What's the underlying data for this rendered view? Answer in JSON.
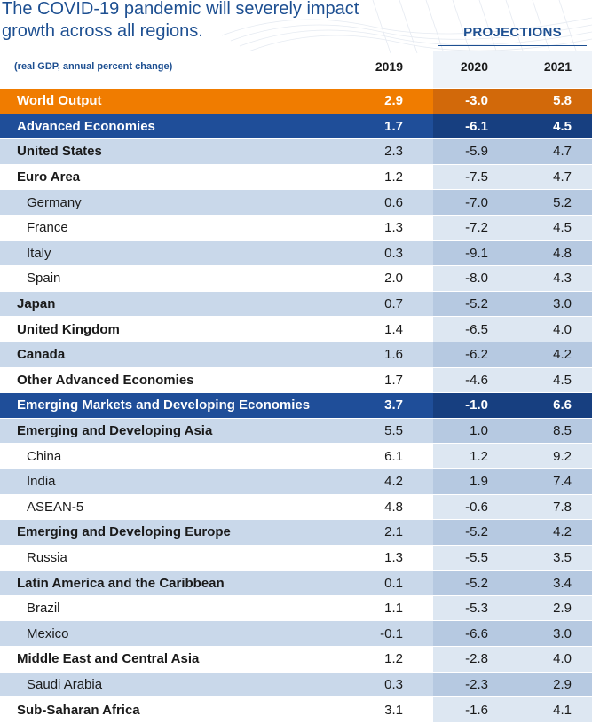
{
  "title_lines": [
    "The COVID-19 pandemic will severely impact",
    "growth across all regions."
  ],
  "projections_label": "PROJECTIONS",
  "subheader": "(real GDP, annual percent change)",
  "colors": {
    "title": "#1d4f91",
    "world_row": "#f07c00",
    "aggregate_row": "#1f4e99",
    "shade_row": "#c9d8ea"
  },
  "chart_data": {
    "type": "table",
    "columns": [
      "2019",
      "2020",
      "2021"
    ],
    "rows": [
      {
        "name": "World Output",
        "style": "world",
        "values": [
          "2.9",
          "-3.0",
          "5.8"
        ]
      },
      {
        "name": "Advanced Economies",
        "style": "agg",
        "values": [
          "1.7",
          "-6.1",
          "4.5"
        ]
      },
      {
        "name": "United States",
        "style": "bold shade",
        "values": [
          "2.3",
          "-5.9",
          "4.7"
        ]
      },
      {
        "name": "Euro Area",
        "style": "bold white",
        "values": [
          "1.2",
          "-7.5",
          "4.7"
        ]
      },
      {
        "name": "Germany",
        "style": "sub shade",
        "values": [
          "0.6",
          "-7.0",
          "5.2"
        ]
      },
      {
        "name": "France",
        "style": "sub white",
        "values": [
          "1.3",
          "-7.2",
          "4.5"
        ]
      },
      {
        "name": "Italy",
        "style": "sub shade",
        "values": [
          "0.3",
          "-9.1",
          "4.8"
        ]
      },
      {
        "name": "Spain",
        "style": "sub white",
        "values": [
          "2.0",
          "-8.0",
          "4.3"
        ]
      },
      {
        "name": "Japan",
        "style": "bold shade",
        "values": [
          "0.7",
          "-5.2",
          "3.0"
        ]
      },
      {
        "name": "United Kingdom",
        "style": "bold white",
        "values": [
          "1.4",
          "-6.5",
          "4.0"
        ]
      },
      {
        "name": "Canada",
        "style": "bold shade",
        "values": [
          "1.6",
          "-6.2",
          "4.2"
        ]
      },
      {
        "name": "Other Advanced Economies",
        "style": "bold white",
        "values": [
          "1.7",
          "-4.6",
          "4.5"
        ]
      },
      {
        "name": "Emerging Markets and Developing Economies",
        "style": "agg",
        "values": [
          "3.7",
          "-1.0",
          "6.6"
        ]
      },
      {
        "name": "Emerging and Developing Asia",
        "style": "bold shade",
        "values": [
          "5.5",
          "1.0",
          "8.5"
        ]
      },
      {
        "name": "China",
        "style": "sub white",
        "values": [
          "6.1",
          "1.2",
          "9.2"
        ]
      },
      {
        "name": "India",
        "style": "sub shade",
        "values": [
          "4.2",
          "1.9",
          "7.4"
        ]
      },
      {
        "name": "ASEAN-5",
        "style": "sub white",
        "values": [
          "4.8",
          "-0.6",
          "7.8"
        ]
      },
      {
        "name": "Emerging and Developing Europe",
        "style": "bold shade",
        "values": [
          "2.1",
          "-5.2",
          "4.2"
        ]
      },
      {
        "name": "Russia",
        "style": "sub white",
        "values": [
          "1.3",
          "-5.5",
          "3.5"
        ]
      },
      {
        "name": "Latin America and the Caribbean",
        "style": "bold shade",
        "values": [
          "0.1",
          "-5.2",
          "3.4"
        ]
      },
      {
        "name": "Brazil",
        "style": "sub white",
        "values": [
          "1.1",
          "-5.3",
          "2.9"
        ]
      },
      {
        "name": "Mexico",
        "style": "sub shade",
        "values": [
          "-0.1",
          "-6.6",
          "3.0"
        ]
      },
      {
        "name": "Middle East and Central Asia",
        "style": "bold white",
        "values": [
          "1.2",
          "-2.8",
          "4.0"
        ]
      },
      {
        "name": "Saudi Arabia",
        "style": "sub shade",
        "values": [
          "0.3",
          "-2.3",
          "2.9"
        ]
      },
      {
        "name": "Sub-Saharan Africa",
        "style": "bold white",
        "values": [
          "3.1",
          "-1.6",
          "4.1"
        ]
      }
    ]
  }
}
